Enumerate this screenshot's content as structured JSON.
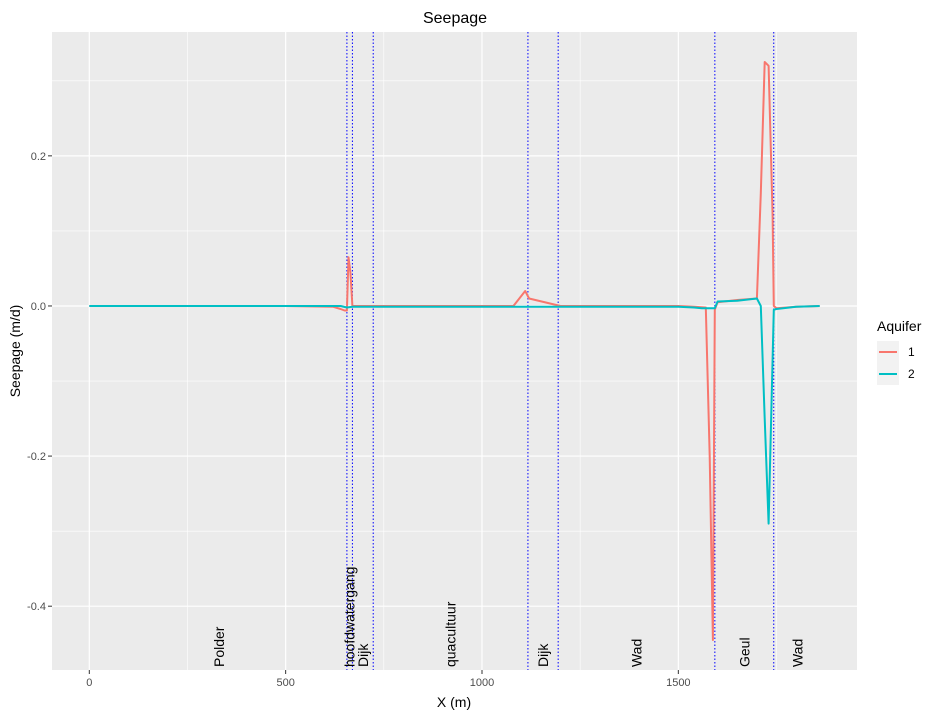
{
  "chart_data": {
    "type": "line",
    "title": "Seepage",
    "xlabel": "X (m)",
    "ylabel": "Seepage (m/d)",
    "xlim": [
      -95,
      1955
    ],
    "ylim": [
      -0.485,
      0.365
    ],
    "x_ticks": [
      0,
      500,
      1000,
      1500
    ],
    "x_tick_labels": [
      "0",
      "500",
      "1000",
      "1500"
    ],
    "y_ticks": [
      -0.4,
      -0.2,
      0.0,
      0.2
    ],
    "y_tick_labels": [
      "-0.4",
      "-0.2",
      "0.0",
      "0.2"
    ],
    "grid": true,
    "legend": {
      "title": "Aquifer",
      "position": "right"
    },
    "boundaries": [
      656,
      670,
      723,
      1117,
      1194,
      1593,
      1743
    ],
    "boundary_color": "#0000ff",
    "region_labels": [
      {
        "text": "Polder",
        "x": 330
      },
      {
        "text": "hoofdwatergang",
        "x": 663
      },
      {
        "text": "Dijk",
        "x": 697
      },
      {
        "text": "quacultuur",
        "x": 920
      },
      {
        "text": "Dijk",
        "x": 1156
      },
      {
        "text": "Wad",
        "x": 1393
      },
      {
        "text": "Geul",
        "x": 1668
      },
      {
        "text": "Wad",
        "x": 1803
      }
    ],
    "series": [
      {
        "name": "1",
        "color": "#F8766D",
        "x": [
          0,
          250,
          500,
          620,
          640,
          650,
          656,
          660,
          665,
          670,
          680,
          700,
          1000,
          1080,
          1095,
          1110,
          1120,
          1200,
          1400,
          1500,
          1540,
          1570,
          1580,
          1588,
          1593,
          1600,
          1650,
          1700,
          1710,
          1720,
          1730,
          1740,
          1743,
          1750,
          1800,
          1860
        ],
        "values": [
          0.0,
          0.0,
          0.0,
          -0.001,
          -0.004,
          -0.006,
          -0.006,
          0.065,
          0.045,
          0.0,
          0.0,
          0.0,
          0.0,
          0.0,
          0.01,
          0.02,
          0.01,
          0.0,
          0.0,
          0.0,
          -0.001,
          -0.002,
          -0.2,
          -0.445,
          -0.005,
          0.005,
          0.008,
          0.01,
          0.15,
          0.325,
          0.32,
          0.12,
          0.0,
          -0.003,
          -0.001,
          0.0
        ]
      },
      {
        "name": "2",
        "color": "#00BFC4",
        "x": [
          0,
          250,
          500,
          640,
          656,
          670,
          700,
          1000,
          1200,
          1400,
          1500,
          1540,
          1560,
          1580,
          1593,
          1600,
          1650,
          1700,
          1710,
          1720,
          1730,
          1743,
          1750,
          1800,
          1860
        ],
        "values": [
          0.0,
          0.0,
          0.0,
          0.0,
          -0.002,
          -0.001,
          -0.001,
          -0.001,
          -0.001,
          -0.001,
          -0.001,
          -0.002,
          -0.003,
          -0.003,
          -0.003,
          0.006,
          0.007,
          0.01,
          0.0,
          -0.15,
          -0.29,
          -0.005,
          -0.004,
          -0.001,
          0.0
        ]
      }
    ]
  }
}
